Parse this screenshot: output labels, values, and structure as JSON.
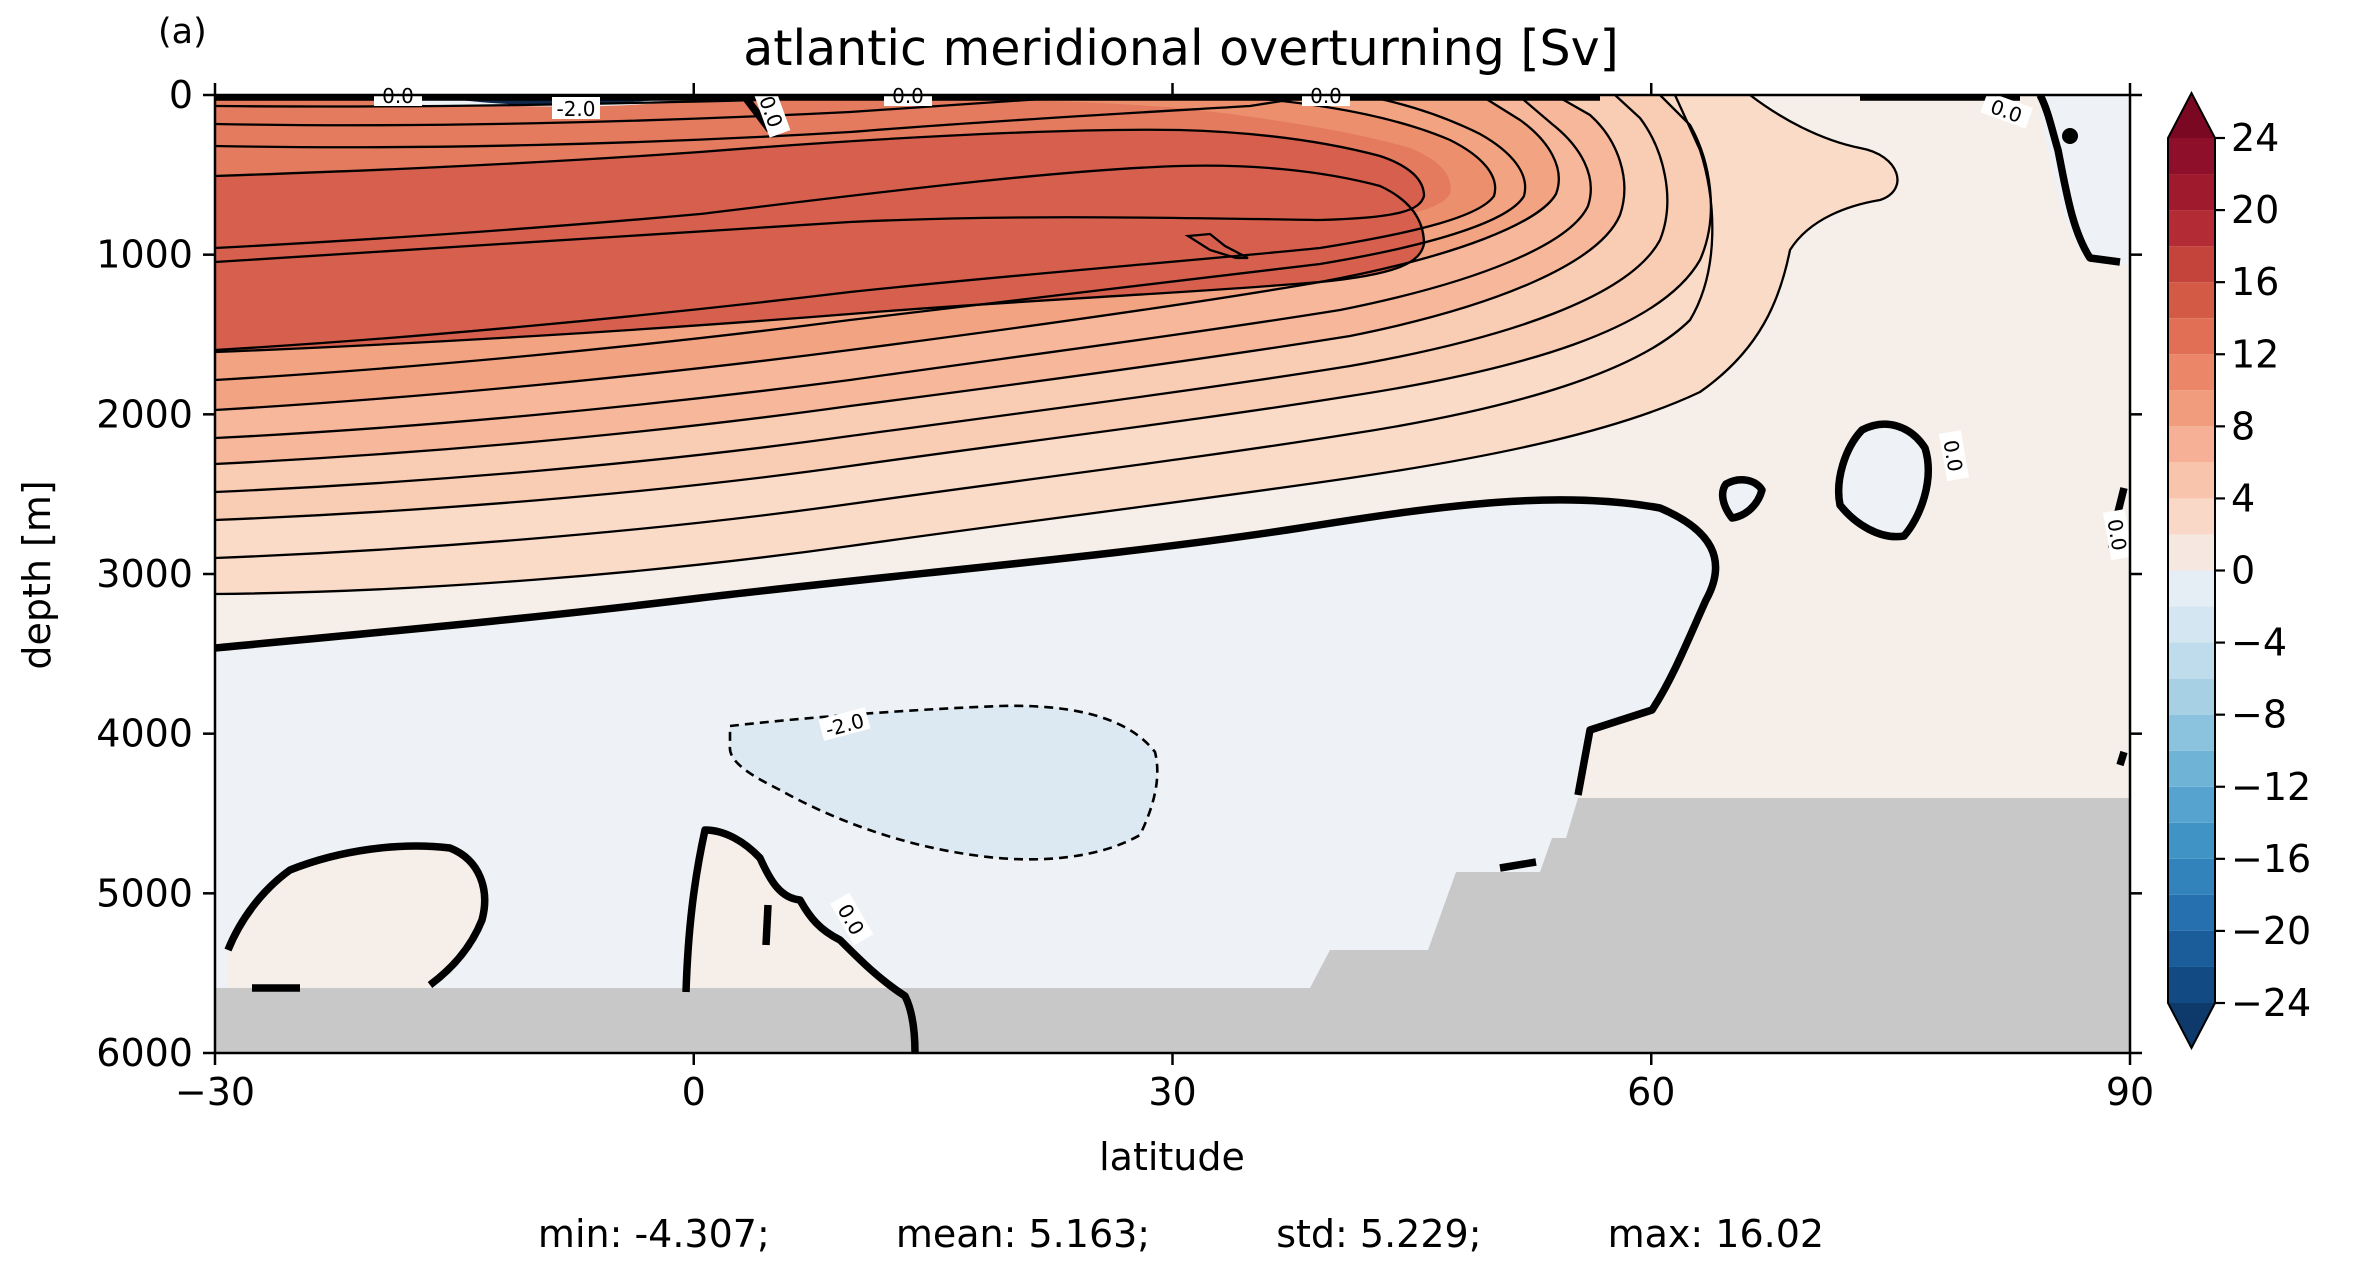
{
  "panel_label": "(a)",
  "chart_data": {
    "type": "heatmap",
    "title": "atlantic meridional overturning [Sv]",
    "xlabel": "latitude",
    "ylabel": "depth [m]",
    "xlim": [
      -30,
      90
    ],
    "ylim": [
      6000,
      0
    ],
    "x_ticks": [
      "−30",
      "0",
      "30",
      "60",
      "90"
    ],
    "x_tick_values": [
      -30,
      0,
      30,
      60,
      90
    ],
    "y_ticks": [
      "0",
      "1000",
      "2000",
      "3000",
      "4000",
      "5000",
      "6000"
    ],
    "y_tick_values": [
      0,
      1000,
      2000,
      3000,
      4000,
      5000,
      6000
    ],
    "colorbar": {
      "colormap": "RdBu_r",
      "range": [
        -26,
        26
      ],
      "level_step": 2,
      "extend": "both",
      "tick_values": [
        24,
        20,
        16,
        12,
        8,
        4,
        0,
        -4,
        -8,
        -12,
        -16,
        -20,
        -24
      ],
      "tick_labels": [
        "24",
        "20",
        "16",
        "12",
        "8",
        "4",
        "0",
        "−4",
        "−8",
        "−12",
        "−16",
        "−20",
        "−24"
      ]
    },
    "contour_labels": [
      "0.0",
      "-2.0",
      "0.0",
      "0.0",
      "0.0",
      "0.0",
      "0.0",
      "0.0",
      "-2.0",
      "0.0"
    ],
    "land_mask_color": "#c8c8c8",
    "grid": false,
    "stats": {
      "min": "min: -4.307;",
      "mean": "mean: 5.163;",
      "std": "std: 5.229;",
      "max": "max: 16.02"
    }
  }
}
